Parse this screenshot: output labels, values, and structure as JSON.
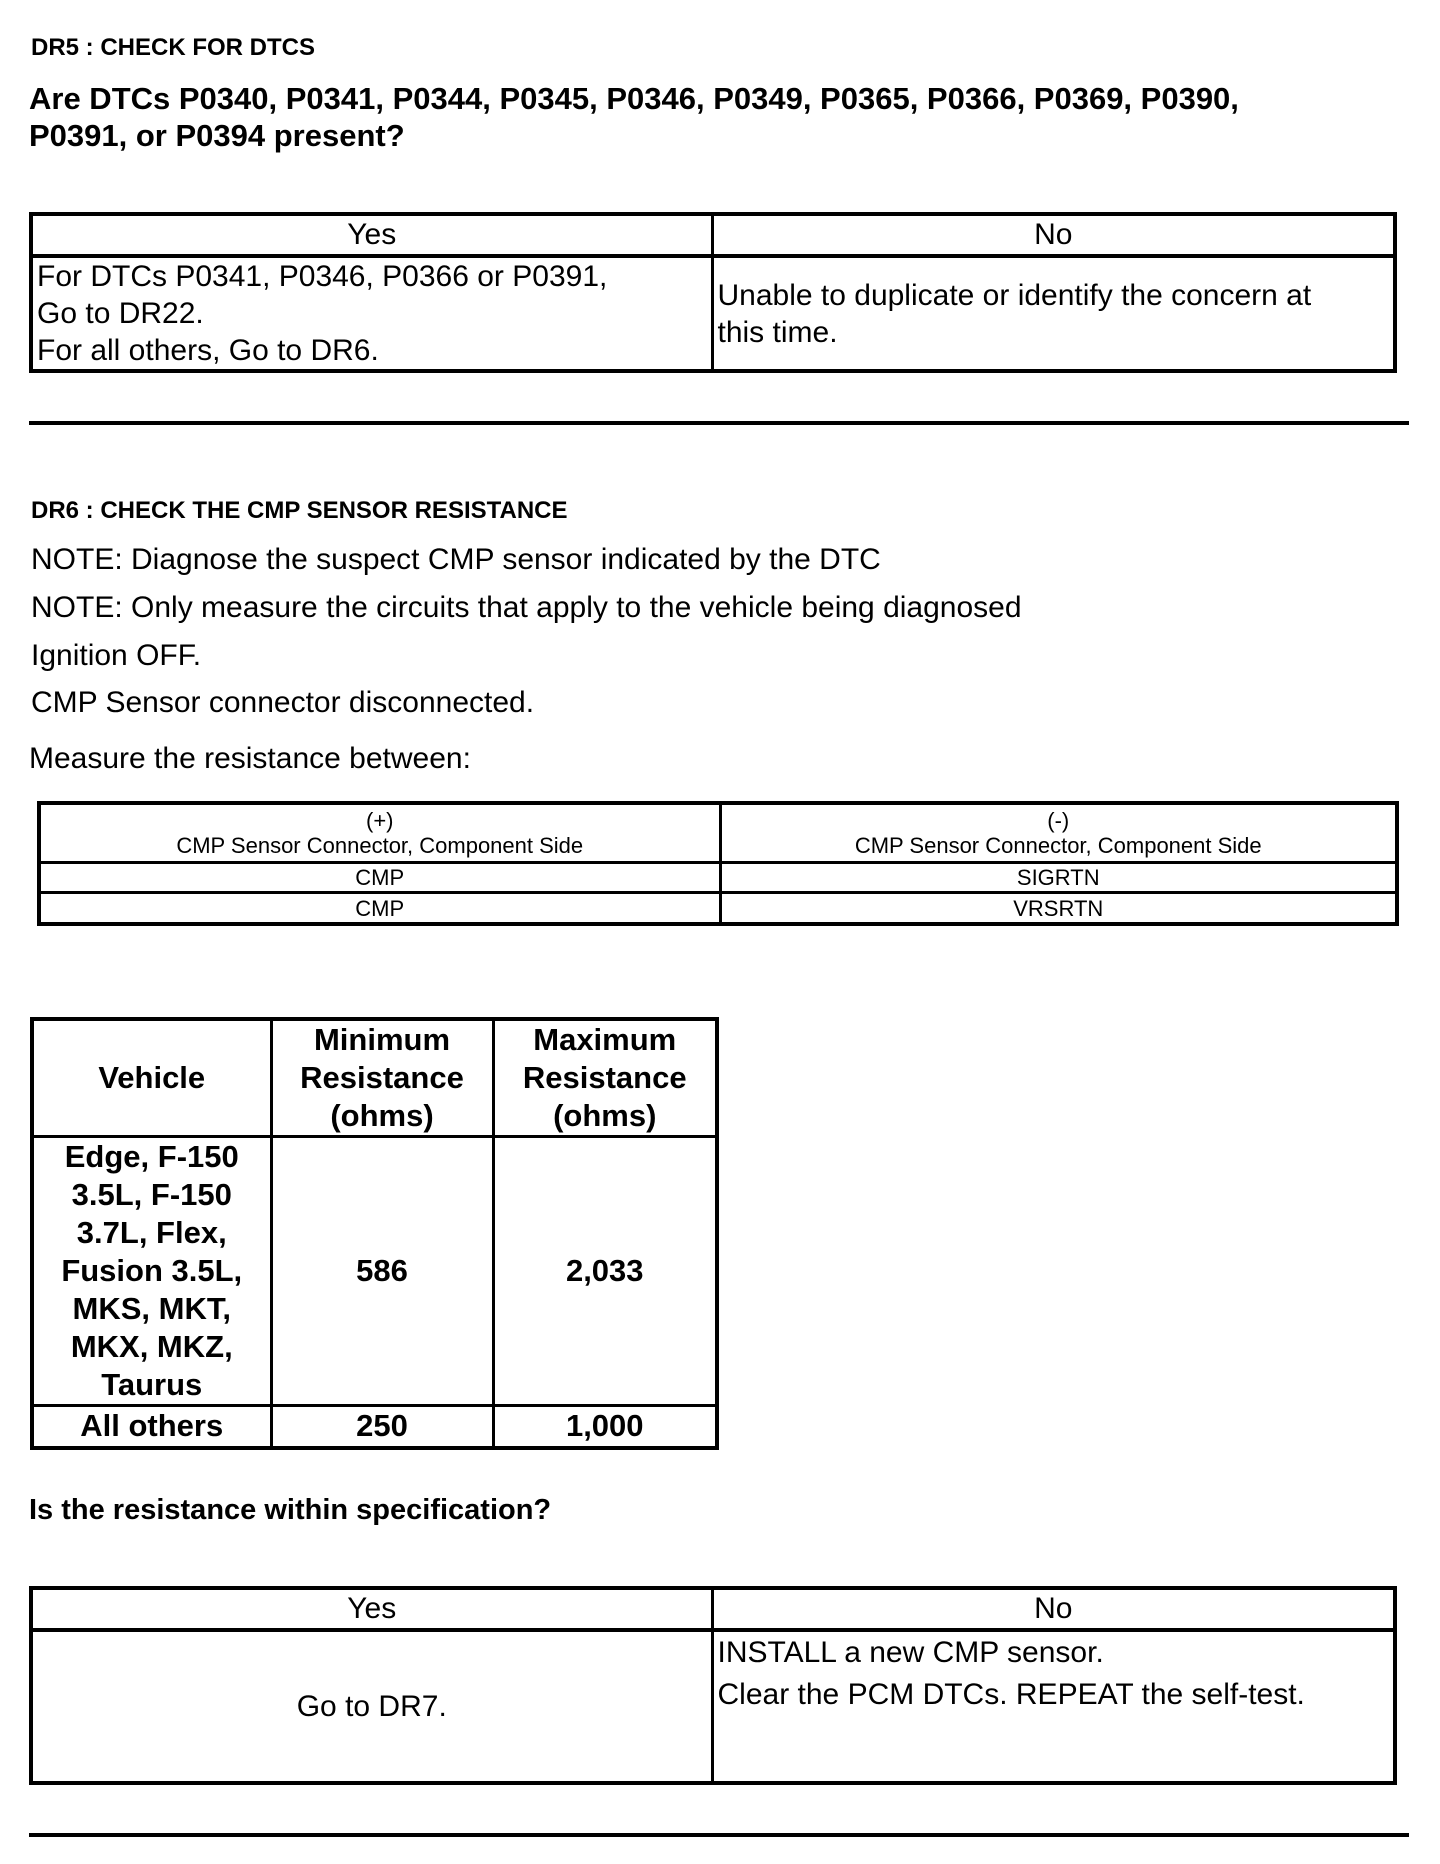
{
  "dr5": {
    "title": "DR5 : CHECK FOR DTCS",
    "question_line1": "Are DTCs P0340, P0341, P0344, P0345, P0346, P0349, P0365, P0366, P0369, P0390,",
    "question_line2": "P0391, or P0394 present?",
    "table": {
      "yes_header": "Yes",
      "no_header": "No",
      "yes_lines": [
        "For DTCs P0341, P0346, P0366 or P0391,",
        "Go to DR22.",
        "For all others, Go to DR6."
      ],
      "no_lines": [
        "Unable to duplicate or identify the concern at",
        "this time."
      ]
    }
  },
  "dr6": {
    "title": "DR6 : CHECK THE CMP SENSOR RESISTANCE",
    "notes": [
      "NOTE: Diagnose the suspect CMP sensor indicated by the DTC",
      "NOTE: Only measure the circuits that apply to the vehicle being diagnosed",
      "Ignition OFF.",
      "CMP Sensor connector disconnected.",
      "Measure the resistance between:"
    ],
    "measure_table": {
      "pos_symbol": "(+)",
      "pos_label": "CMP Sensor Connector, Component Side",
      "neg_symbol": "(-)",
      "neg_label": "CMP Sensor Connector, Component Side",
      "rows": [
        [
          "CMP",
          "SIGRTN"
        ],
        [
          "CMP",
          "VRSRTN"
        ]
      ]
    },
    "resistance_table": {
      "headers": [
        [
          "Vehicle"
        ],
        [
          "Minimum",
          "Resistance",
          "(ohms)"
        ],
        [
          "Maximum",
          "Resistance",
          "(ohms)"
        ]
      ],
      "rows": [
        {
          "vehicle": [
            "Edge, F-150",
            "3.5L, F-150",
            "3.7L, Flex,",
            "Fusion 3.5L,",
            "MKS, MKT,",
            "MKX, MKZ,",
            "Taurus"
          ],
          "min": "586",
          "max": "2,033"
        },
        {
          "vehicle": [
            "All others"
          ],
          "min": "250",
          "max": "1,000"
        }
      ]
    },
    "question": "Is the resistance within specification?",
    "table": {
      "yes_header": "Yes",
      "no_header": "No",
      "yes_text": "Go to DR7.",
      "no_lines": [
        "INSTALL a new CMP sensor.",
        "Clear the PCM DTCs. REPEAT the self-test."
      ]
    }
  }
}
